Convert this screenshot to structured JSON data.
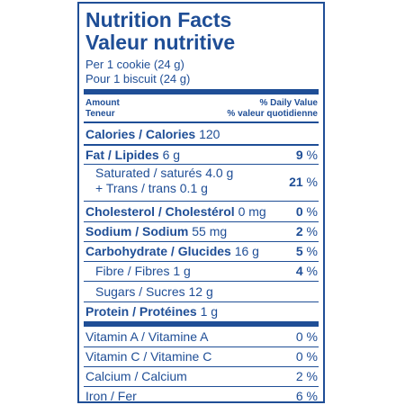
{
  "title_en": "Nutrition Facts",
  "title_fr": "Valeur nutritive",
  "serving_en": "Per 1 cookie (24 g)",
  "serving_fr": "Pour 1 biscuit (24 g)",
  "header": {
    "amount_en": "Amount",
    "amount_fr": "Teneur",
    "dv_en": "% Daily Value",
    "dv_fr": "% valeur quotidienne"
  },
  "rows": {
    "calories": {
      "label": "Calories / Calories",
      "value": "120"
    },
    "fat": {
      "label": "Fat / Lipides",
      "value": "6 g",
      "dv": "9",
      "unit": "%"
    },
    "saturated": {
      "label": "Saturated / saturés",
      "value": "4.0 g"
    },
    "trans": {
      "label": "+ Trans / trans",
      "value": "0.1 g"
    },
    "sat_trans_dv": "21",
    "cholesterol": {
      "label": "Cholesterol / Cholestérol",
      "value": "0 mg",
      "dv": "0"
    },
    "sodium": {
      "label": "Sodium / Sodium",
      "value": "55 mg",
      "dv": "2"
    },
    "carbohydrate": {
      "label": "Carbohydrate / Glucides",
      "value": "16 g",
      "dv": "5"
    },
    "fibre": {
      "label": "Fibre / Fibres",
      "value": "1 g",
      "dv": "4"
    },
    "sugars": {
      "label": "Sugars / Sucres",
      "value": "12 g"
    },
    "protein": {
      "label": "Protein / Protéines",
      "value": "1 g"
    },
    "vitamin_a": {
      "label": "Vitamin A / Vitamine A",
      "dv": "0"
    },
    "vitamin_c": {
      "label": "Vitamin C / Vitamine C",
      "dv": "0"
    },
    "calcium": {
      "label": "Calcium / Calcium",
      "dv": "2"
    },
    "iron": {
      "label": "Iron / Fer",
      "dv": "6"
    }
  },
  "percent_sign": "%",
  "colors": {
    "ink": "#1f4e96",
    "background": "#ffffff"
  }
}
